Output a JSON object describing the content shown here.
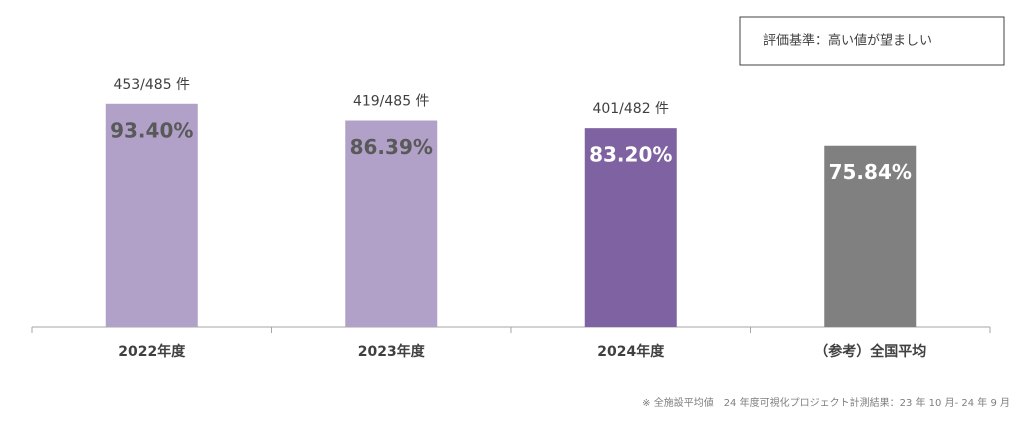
{
  "chart_data": {
    "type": "bar",
    "categories": [
      "2022年度",
      "2023年度",
      "2024年度",
      "（参考）全国平均"
    ],
    "values": [
      93.4,
      86.39,
      83.2,
      75.84
    ],
    "value_labels": [
      "93.40%",
      "86.39%",
      "83.20%",
      "75.84%"
    ],
    "colors": [
      "#b1a1c8",
      "#b1a1c8",
      "#7f62a1",
      "#808080"
    ],
    "value_label_colors": [
      "#595959",
      "#595959",
      "#ffffff",
      "#ffffff"
    ],
    "count_labels": [
      "453/485 件",
      "419/485 件",
      "401/482 件",
      null
    ],
    "ylim": [
      0,
      100
    ],
    "note": "評価基準：高い値が望ましい",
    "footnote": "※ 全施設平均値　24 年度可視化プロジェクト計測結果：23 年 10 月- 24 年 9 月"
  }
}
